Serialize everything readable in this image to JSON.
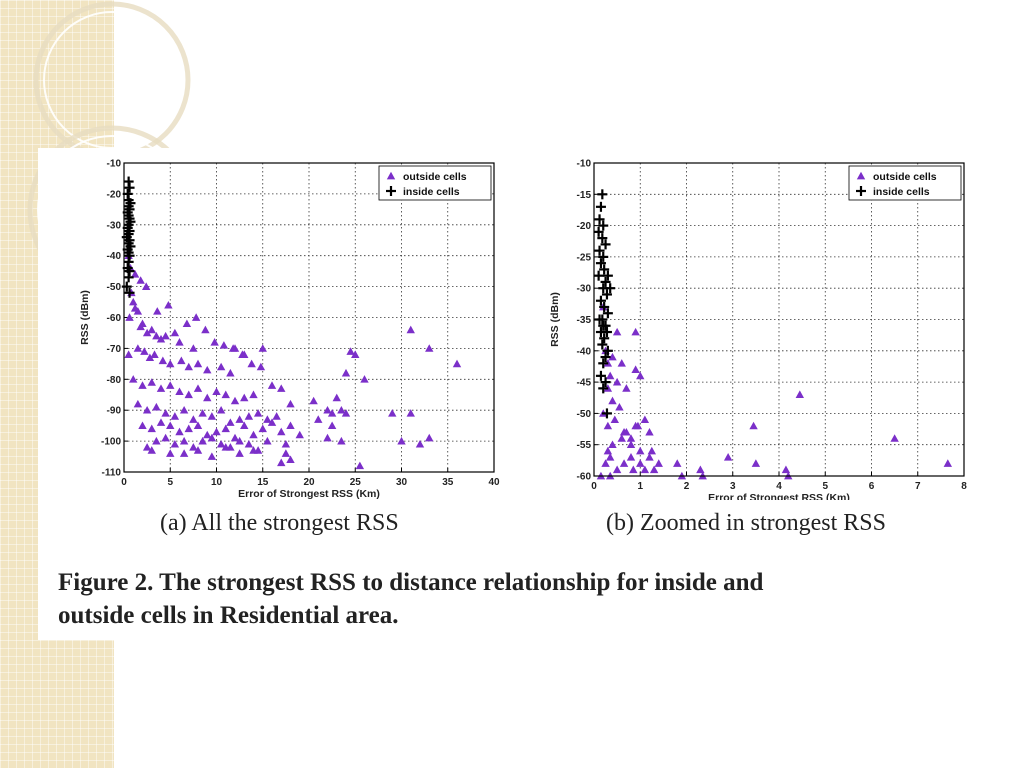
{
  "figure": {
    "caption_line1": "Figure 2.  The strongest RSS to distance relationship for inside and",
    "caption_line2": "outside cells in Residential area."
  },
  "colors": {
    "outside": "#7b2fc9",
    "inside": "#000000",
    "strip": "#f1e4c1"
  },
  "chart_data": [
    {
      "type": "scatter",
      "subcaption": "(a) All the strongest RSS",
      "xlabel": "Error of Strongest RSS (Km)",
      "ylabel": "RSS (dBm)",
      "xlim": [
        0,
        40
      ],
      "ylim": [
        -110,
        -10
      ],
      "xticks": [
        0,
        5,
        10,
        15,
        20,
        25,
        30,
        35,
        40
      ],
      "yticks": [
        -10,
        -20,
        -30,
        -40,
        -50,
        -60,
        -70,
        -80,
        -90,
        -100,
        -110
      ],
      "grid": true,
      "legend_position": "top-right",
      "series": [
        {
          "name": "outside cells",
          "marker": "triangle",
          "x": [
            0.8,
            1.0,
            1.2,
            1.5,
            0.6,
            2.0,
            1.8,
            2.5,
            3.0,
            3.5,
            4.0,
            4.5,
            5.5,
            6.0,
            7.5,
            0.5,
            1.5,
            2.2,
            2.8,
            3.3,
            4.2,
            5.0,
            6.2,
            7.0,
            8.0,
            9.0,
            10.5,
            11.5,
            12.0,
            13.0,
            15.0,
            1.0,
            2.0,
            3.0,
            4.0,
            5.0,
            6.0,
            7.0,
            8.0,
            9.0,
            10.0,
            11.0,
            12.0,
            13.0,
            14.0,
            16.0,
            17.0,
            18.0,
            20.5,
            23.0,
            26.0,
            1.5,
            2.5,
            3.5,
            4.5,
            5.5,
            6.5,
            7.5,
            8.5,
            9.5,
            10.5,
            11.5,
            12.5,
            13.5,
            14.5,
            15.5,
            16.5,
            22.0,
            24.0,
            2.0,
            3.0,
            4.0,
            5.0,
            6.0,
            7.0,
            8.0,
            9.0,
            10.0,
            11.0,
            12.0,
            13.0,
            14.0,
            15.0,
            16.0,
            17.0,
            18.0,
            19.0,
            21.0,
            22.5,
            23.5,
            29.0,
            3.5,
            4.5,
            5.5,
            6.5,
            7.5,
            8.5,
            9.5,
            10.5,
            11.5,
            12.5,
            13.5,
            14.5,
            15.5,
            17.5,
            22.0,
            30.0,
            32.0,
            33.0,
            3.0,
            5.0,
            6.5,
            8.0,
            9.5,
            11.0,
            12.5,
            14.0,
            17.0,
            17.5,
            18.0,
            2.5,
            25.5,
            31.0,
            33.0,
            36.0,
            24.5,
            25.0,
            24.0,
            31.0,
            22.5,
            23.5,
            1.2,
            1.8,
            2.4,
            3.6,
            4.8,
            6.8,
            7.8,
            8.8,
            9.8,
            10.8,
            11.8,
            12.8,
            13.8,
            14.8,
            0.5,
            0.7
          ],
          "y": [
            -52,
            -55,
            -57,
            -58,
            -60,
            -62,
            -63,
            -65,
            -64,
            -66,
            -67,
            -66,
            -65,
            -68,
            -70,
            -72,
            -70,
            -71,
            -73,
            -72,
            -74,
            -75,
            -74,
            -76,
            -75,
            -77,
            -76,
            -78,
            -70,
            -72,
            -70,
            -80,
            -82,
            -81,
            -83,
            -82,
            -84,
            -85,
            -83,
            -86,
            -84,
            -85,
            -87,
            -86,
            -85,
            -82,
            -83,
            -88,
            -87,
            -86,
            -80,
            -88,
            -90,
            -89,
            -91,
            -92,
            -90,
            -93,
            -91,
            -92,
            -90,
            -94,
            -93,
            -92,
            -91,
            -93,
            -92,
            -90,
            -91,
            -95,
            -96,
            -94,
            -95,
            -97,
            -96,
            -95,
            -98,
            -97,
            -96,
            -99,
            -95,
            -98,
            -96,
            -94,
            -97,
            -95,
            -98,
            -93,
            -95,
            -100,
            -91,
            -100,
            -99,
            -101,
            -100,
            -102,
            -100,
            -99,
            -101,
            -102,
            -100,
            -101,
            -103,
            -100,
            -101,
            -99,
            -100,
            -101,
            -99,
            -103,
            -104,
            -104,
            -103,
            -105,
            -102,
            -104,
            -103,
            -107,
            -104,
            -106,
            -102,
            -108,
            -64,
            -70,
            -75,
            -71,
            -72,
            -78,
            -91,
            -91,
            -90,
            -46,
            -48,
            -50,
            -58,
            -56,
            -62,
            -60,
            -64,
            -68,
            -69,
            -70,
            -72,
            -75,
            -76,
            -40,
            -44
          ]
        },
        {
          "name": "inside cells",
          "marker": "plus",
          "x": [
            0.5,
            0.6,
            0.4,
            0.5,
            0.7,
            0.5,
            0.6,
            0.4,
            0.5,
            0.6,
            0.7,
            0.5,
            0.4,
            0.6,
            0.5,
            0.3,
            0.6,
            0.5,
            0.7,
            0.4,
            0.5,
            0.6,
            0.5,
            0.4,
            0.6,
            0.5,
            0.3,
            0.6
          ],
          "y": [
            -16,
            -18,
            -20,
            -22,
            -23,
            -24,
            -25,
            -26,
            -27,
            -28,
            -29,
            -30,
            -31,
            -32,
            -33,
            -34,
            -35,
            -36,
            -37,
            -38,
            -39,
            -40,
            -42,
            -44,
            -45,
            -47,
            -50,
            -52
          ]
        }
      ]
    },
    {
      "type": "scatter",
      "subcaption": "(b) Zoomed in strongest RSS",
      "xlabel": "Error of Strongest RSS (Km)",
      "ylabel": "RSS (dBm)",
      "xlim": [
        0,
        8
      ],
      "ylim": [
        -60,
        -10
      ],
      "xticks": [
        0,
        1,
        2,
        3,
        4,
        5,
        6,
        7,
        8
      ],
      "yticks": [
        -10,
        -15,
        -20,
        -25,
        -30,
        -35,
        -40,
        -45,
        -50,
        -55,
        -60
      ],
      "grid": true,
      "legend_position": "top-right",
      "series": [
        {
          "name": "outside cells",
          "marker": "triangle",
          "x": [
            0.25,
            0.3,
            0.35,
            0.4,
            0.5,
            0.6,
            0.7,
            0.9,
            1.0,
            0.2,
            0.3,
            0.45,
            0.55,
            0.65,
            0.8,
            0.95,
            0.3,
            0.4,
            0.6,
            0.7,
            0.9,
            1.1,
            1.2,
            0.25,
            0.35,
            0.5,
            0.65,
            0.8,
            0.85,
            1.0,
            1.1,
            1.2,
            1.3,
            1.4,
            1.8,
            1.9,
            2.3,
            2.35,
            2.9,
            3.5,
            4.15,
            4.2,
            0.15,
            0.35,
            1.0,
            1.25,
            0.9,
            0.2,
            0.5,
            3.45,
            4.45,
            6.5,
            7.65,
            0.8,
            0.4,
            0.3
          ],
          "y": [
            -40,
            -42,
            -44,
            -41,
            -45,
            -42,
            -46,
            -43,
            -44,
            -50,
            -52,
            -51,
            -49,
            -53,
            -54,
            -52,
            -56,
            -55,
            -54,
            -53,
            -52,
            -51,
            -53,
            -58,
            -57,
            -59,
            -58,
            -57,
            -59,
            -58,
            -59,
            -57,
            -59,
            -58,
            -58,
            -60,
            -59,
            -60,
            -57,
            -58,
            -59,
            -60,
            -60,
            -60,
            -56,
            -56,
            -37,
            -33,
            -37,
            -52,
            -47,
            -54,
            -58,
            -55,
            -48,
            -46
          ]
        },
        {
          "name": "inside cells",
          "marker": "plus",
          "x": [
            0.18,
            0.15,
            0.12,
            0.2,
            0.1,
            0.18,
            0.25,
            0.12,
            0.2,
            0.15,
            0.22,
            0.3,
            0.1,
            0.25,
            0.35,
            0.2,
            0.28,
            0.15,
            0.22,
            0.3,
            0.18,
            0.12,
            0.25,
            0.2,
            0.15,
            0.28,
            0.22,
            0.18,
            0.3,
            0.25,
            0.2,
            0.15,
            0.25,
            0.2,
            0.28
          ],
          "y": [
            -15,
            -17,
            -19,
            -20,
            -21,
            -22,
            -23,
            -24,
            -25,
            -26,
            -27,
            -28,
            -28,
            -29,
            -30,
            -30,
            -31,
            -32,
            -33,
            -34,
            -35,
            -35,
            -36,
            -36,
            -37,
            -37,
            -38,
            -39,
            -40,
            -41,
            -42,
            -44,
            -45,
            -46,
            -50
          ]
        }
      ]
    }
  ]
}
